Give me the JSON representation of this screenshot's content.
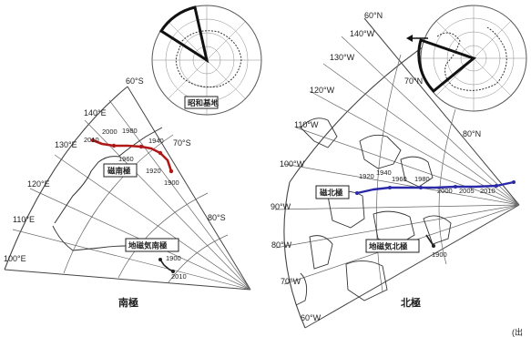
{
  "south": {
    "caption": "南極",
    "inset_label": "昭和基地",
    "magnetic_pole_label": "磁南極",
    "geomagnetic_pole_label": "地磁気南極",
    "meridians": [
      "100°E",
      "110°E",
      "120°E",
      "130°E",
      "140°E",
      "60°S",
      "70°S",
      "80°S"
    ],
    "path_years": [
      "2010",
      "2000",
      "1980",
      "1960",
      "1940",
      "1920",
      "1900"
    ],
    "geo_years": [
      "1900",
      "2010"
    ],
    "track_color": "#b01818"
  },
  "north": {
    "caption": "北極",
    "magnetic_pole_label": "磁北極",
    "geomagnetic_pole_label": "地磁気北極",
    "meridians": [
      "60°N",
      "140°W",
      "130°W",
      "120°W",
      "110°W",
      "100°W",
      "90°W",
      "80°W",
      "70°W",
      "60°W",
      "70°N",
      "80°N"
    ],
    "path_years": [
      "1920",
      "1940",
      "1960",
      "1980",
      "2000",
      "2005",
      "2010"
    ],
    "geo_years": [
      "1900"
    ],
    "track_color": "#2a2aa8"
  },
  "footer_fragment": "(出"
}
